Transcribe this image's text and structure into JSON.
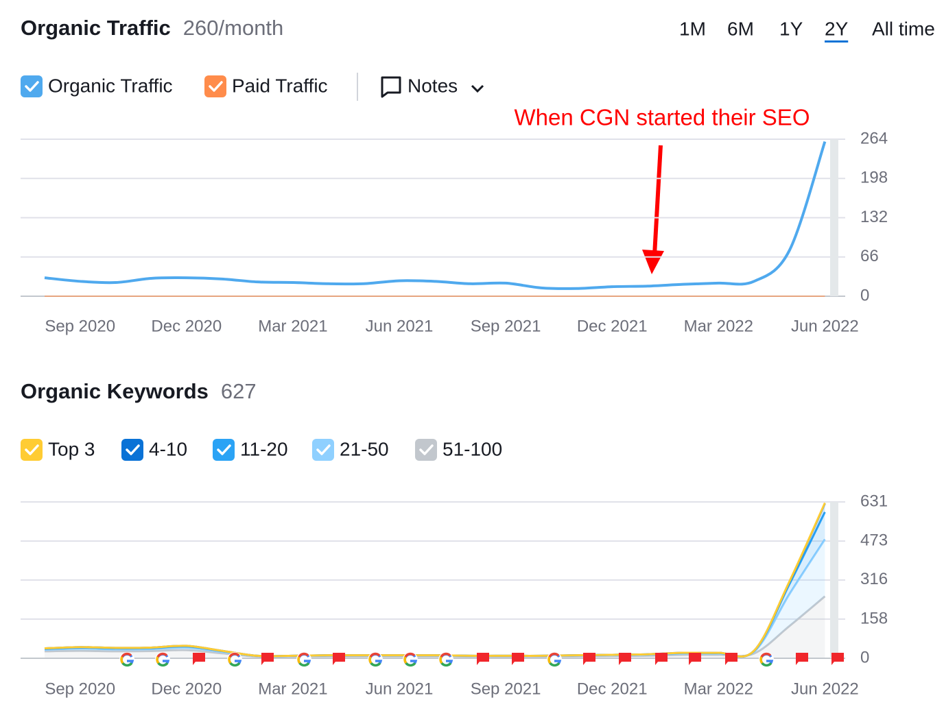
{
  "ranges": [
    "1M",
    "6M",
    "1Y",
    "2Y",
    "All time"
  ],
  "selected_range": "2Y",
  "notes_label": "Notes",
  "chart_data": [
    {
      "type": "line",
      "title": "Organic Traffic",
      "subtitle": "260/month",
      "annotation": "When CGN started their SEO",
      "categories": [
        null,
        "Sep 2020",
        null,
        null,
        "Dec 2020",
        null,
        null,
        "Mar 2021",
        null,
        null,
        "Jun 2021",
        null,
        null,
        "Sep 2021",
        null,
        null,
        "Dec 2021",
        null,
        null,
        "Mar 2022",
        null,
        null,
        "Jun 2022"
      ],
      "series": [
        {
          "name": "Organic Traffic",
          "color": "#4fa9ee",
          "values": [
            31,
            25,
            23,
            30,
            31,
            29,
            24,
            23,
            21,
            21,
            26,
            25,
            21,
            22,
            14,
            13,
            16,
            17,
            20,
            22,
            25,
            77,
            260
          ]
        },
        {
          "name": "Paid Traffic",
          "color": "#ff8c4b",
          "values": [
            0,
            0,
            0,
            0,
            0,
            0,
            0,
            0,
            0,
            0,
            0,
            0,
            0,
            0,
            0,
            0,
            0,
            0,
            0,
            0,
            0,
            0,
            0
          ]
        }
      ],
      "ylim": [
        0,
        264
      ],
      "yticks": [
        0,
        66,
        132,
        198,
        264
      ],
      "grid": true
    },
    {
      "type": "area",
      "stacked": true,
      "title": "Organic Keywords",
      "subtitle": 627,
      "categories": [
        null,
        "Sep 2020",
        null,
        null,
        "Dec 2020",
        null,
        null,
        "Mar 2021",
        null,
        null,
        "Jun 2021",
        null,
        null,
        "Sep 2021",
        null,
        null,
        "Dec 2021",
        null,
        null,
        "Mar 2022",
        null,
        null,
        "Jun 2022"
      ],
      "series": [
        {
          "name": "Top 3",
          "color": "#ffcc33",
          "values": [
            0,
            0,
            0,
            0,
            0,
            0,
            0,
            0,
            0,
            0,
            0,
            0,
            0,
            0,
            0,
            0,
            0,
            0,
            0,
            0,
            0,
            1,
            2
          ]
        },
        {
          "name": "4-10",
          "color": "#0a72d6",
          "values": [
            2,
            2,
            2,
            2,
            2,
            1,
            0,
            0,
            0,
            0,
            0,
            0,
            0,
            0,
            0,
            0,
            0,
            0,
            1,
            1,
            1,
            10,
            35
          ]
        },
        {
          "name": "11-20",
          "color": "#2ba3f5",
          "values": [
            3,
            4,
            4,
            4,
            5,
            3,
            1,
            1,
            1,
            1,
            1,
            1,
            1,
            1,
            1,
            1,
            2,
            2,
            2,
            2,
            3,
            40,
            110
          ]
        },
        {
          "name": "21-50",
          "color": "#8fd0ff",
          "values": [
            7,
            9,
            8,
            8,
            10,
            6,
            2,
            2,
            3,
            3,
            3,
            3,
            2,
            2,
            2,
            3,
            3,
            4,
            5,
            5,
            7,
            129,
            230
          ]
        },
        {
          "name": "51-100",
          "color": "#c2c7cd",
          "values": [
            28,
            30,
            28,
            29,
            33,
            20,
            7,
            7,
            8,
            8,
            8,
            8,
            7,
            7,
            7,
            8,
            9,
            10,
            14,
            14,
            19,
            130,
            250
          ]
        }
      ],
      "ylim": [
        0,
        631
      ],
      "yticks": [
        0,
        158,
        316,
        473,
        631
      ],
      "grid": true
    }
  ]
}
